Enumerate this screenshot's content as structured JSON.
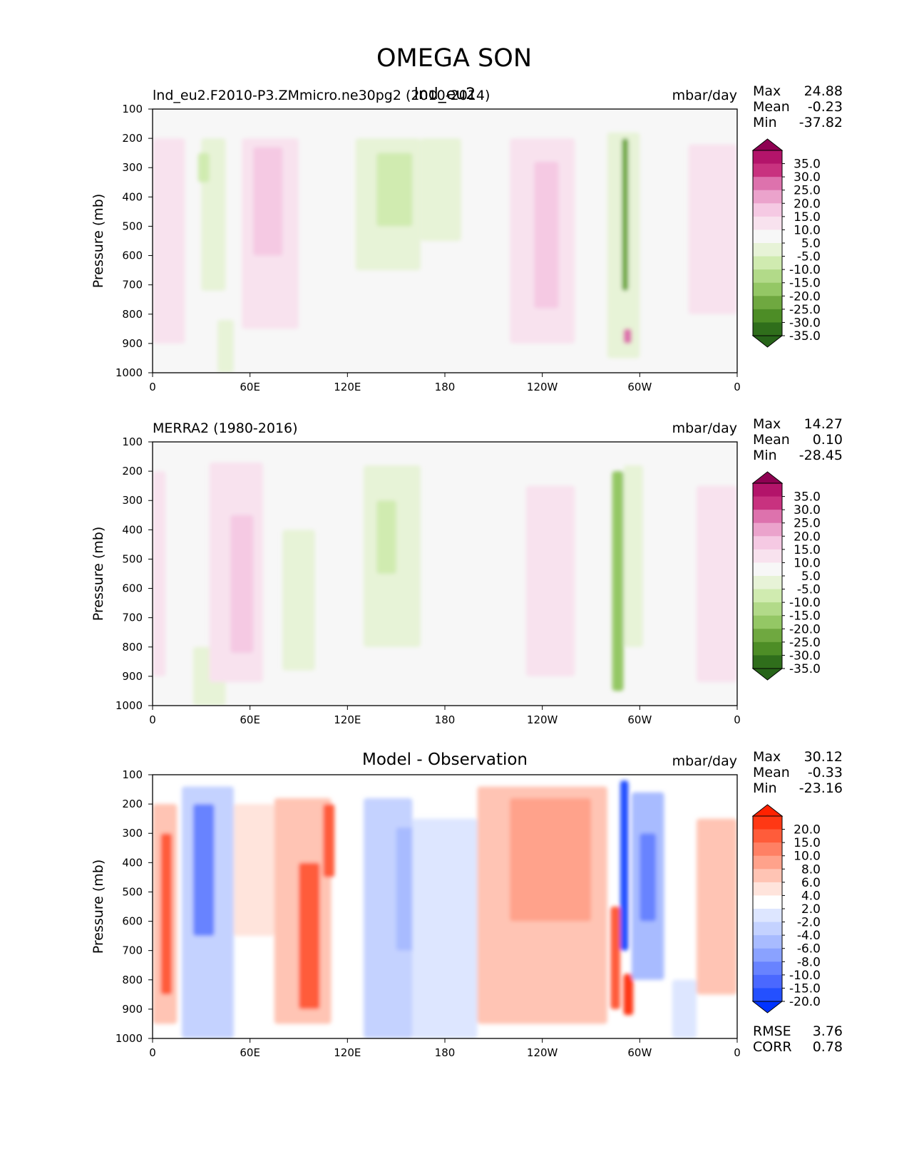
{
  "title": "OMEGA SON",
  "panels": [
    {
      "id": "test",
      "left_title": "lnd_eu2.F2010-P3.ZMmicro.ne30pg2 (2010-2014)",
      "center_title": "lnd_eu2",
      "units": "mbar/day",
      "stats": [
        {
          "label": "Max",
          "value": "24.88"
        },
        {
          "label": "Mean",
          "value": "-0.23"
        },
        {
          "label": "Min",
          "value": "-37.82"
        }
      ],
      "colormap": "green-pink"
    },
    {
      "id": "ref",
      "left_title": "MERRA2 (1980-2016)",
      "center_title": "",
      "units": "mbar/day",
      "stats": [
        {
          "label": "Max",
          "value": "14.27"
        },
        {
          "label": "Mean",
          "value": "0.10"
        },
        {
          "label": "Min",
          "value": "-28.45"
        }
      ],
      "colormap": "green-pink"
    },
    {
      "id": "diff",
      "left_title": "",
      "center_title": "Model - Observation",
      "units": "mbar/day",
      "stats": [
        {
          "label": "Max",
          "value": "30.12"
        },
        {
          "label": "Mean",
          "value": "-0.33"
        },
        {
          "label": "Min",
          "value": "-23.16"
        }
      ],
      "extra_stats": [
        {
          "label": "RMSE",
          "value": "3.76"
        },
        {
          "label": "CORR",
          "value": "0.78"
        }
      ],
      "colormap": "blue-red"
    }
  ],
  "axes": {
    "ylabel": "Pressure (mb)",
    "y_ticks": [
      "100",
      "200",
      "300",
      "400",
      "500",
      "600",
      "700",
      "800",
      "900",
      "1000"
    ],
    "x_ticks": [
      "0",
      "60E",
      "120E",
      "180",
      "120W",
      "60W",
      "0"
    ]
  },
  "colorbars": {
    "green-pink": {
      "labels": [
        "35.0",
        "30.0",
        "25.0",
        "20.0",
        "15.0",
        "10.0",
        "5.0",
        "-5.0",
        "-10.0",
        "-15.0",
        "-20.0",
        "-25.0",
        "-30.0",
        "-35.0"
      ],
      "colors": [
        "#8e0152",
        "#b3146a",
        "#c8327f",
        "#dd72ad",
        "#eba3cc",
        "#f5c9e3",
        "#f8e2ee",
        "#f7f7f7",
        "#e7f3d7",
        "#d0ebb0",
        "#b2da89",
        "#94c765",
        "#6fa840",
        "#4d8d26",
        "#2f6e1b",
        "#276419"
      ]
    },
    "blue-red": {
      "labels": [
        "20.0",
        "15.0",
        "10.0",
        "8.0",
        "6.0",
        "4.0",
        "2.0",
        "-2.0",
        "-4.0",
        "-6.0",
        "-8.0",
        "-10.0",
        "-15.0",
        "-20.0"
      ],
      "colors": [
        "#ff2200",
        "#ff3814",
        "#ff5c3a",
        "#ff8064",
        "#ffa28b",
        "#ffc4b4",
        "#ffe4dc",
        "#ffffff",
        "#dde6ff",
        "#c4d2ff",
        "#a8bbff",
        "#8aa2ff",
        "#6883ff",
        "#4a68ff",
        "#2450ff",
        "#0033ff"
      ]
    }
  },
  "chart_data": [
    {
      "type": "heatmap",
      "title": "lnd_eu2.F2010-P3.ZMmicro.ne30pg2 (2010-2014)",
      "xlabel": "",
      "ylabel": "Pressure (mb)",
      "x_range": [
        0,
        360
      ],
      "y_range": [
        1000,
        100
      ],
      "units": "mbar/day",
      "features": [
        {
          "lon": [
            0,
            20
          ],
          "p": [
            200,
            900
          ],
          "value": 8
        },
        {
          "lon": [
            30,
            45
          ],
          "p": [
            200,
            720
          ],
          "value": -8
        },
        {
          "lon": [
            28,
            35
          ],
          "p": [
            250,
            350
          ],
          "value": -12
        },
        {
          "lon": [
            40,
            50
          ],
          "p": [
            820,
            1000
          ],
          "value": -6
        },
        {
          "lon": [
            55,
            90
          ],
          "p": [
            200,
            850
          ],
          "value": 7
        },
        {
          "lon": [
            62,
            80
          ],
          "p": [
            230,
            600
          ],
          "value": 13
        },
        {
          "lon": [
            125,
            165
          ],
          "p": [
            200,
            650
          ],
          "value": -9
        },
        {
          "lon": [
            138,
            160
          ],
          "p": [
            250,
            500
          ],
          "value": -13
        },
        {
          "lon": [
            165,
            190
          ],
          "p": [
            200,
            550
          ],
          "value": -6
        },
        {
          "lon": [
            220,
            260
          ],
          "p": [
            200,
            900
          ],
          "value": 8
        },
        {
          "lon": [
            235,
            250
          ],
          "p": [
            280,
            780
          ],
          "value": 12
        },
        {
          "lon": [
            280,
            300
          ],
          "p": [
            180,
            950
          ],
          "value": -10
        },
        {
          "lon": [
            289,
            293
          ],
          "p": [
            200,
            720
          ],
          "value": -30
        },
        {
          "lon": [
            290,
            295
          ],
          "p": [
            850,
            900
          ],
          "value": 22
        },
        {
          "lon": [
            330,
            360
          ],
          "p": [
            220,
            800
          ],
          "value": 8
        }
      ]
    },
    {
      "type": "heatmap",
      "title": "MERRA2 (1980-2016)",
      "xlabel": "",
      "ylabel": "Pressure (mb)",
      "x_range": [
        0,
        360
      ],
      "y_range": [
        1000,
        100
      ],
      "units": "mbar/day",
      "features": [
        {
          "lon": [
            0,
            8
          ],
          "p": [
            200,
            900
          ],
          "value": 6
        },
        {
          "lon": [
            25,
            45
          ],
          "p": [
            800,
            1000
          ],
          "value": -8
        },
        {
          "lon": [
            35,
            68
          ],
          "p": [
            170,
            920
          ],
          "value": 7
        },
        {
          "lon": [
            48,
            62
          ],
          "p": [
            350,
            820
          ],
          "value": 13
        },
        {
          "lon": [
            80,
            100
          ],
          "p": [
            400,
            880
          ],
          "value": -7
        },
        {
          "lon": [
            130,
            165
          ],
          "p": [
            180,
            800
          ],
          "value": -7
        },
        {
          "lon": [
            138,
            150
          ],
          "p": [
            300,
            550
          ],
          "value": -11
        },
        {
          "lon": [
            230,
            260
          ],
          "p": [
            250,
            900
          ],
          "value": 6
        },
        {
          "lon": [
            283,
            290
          ],
          "p": [
            200,
            950
          ],
          "value": -25
        },
        {
          "lon": [
            290,
            302
          ],
          "p": [
            180,
            800
          ],
          "value": -9
        },
        {
          "lon": [
            335,
            360
          ],
          "p": [
            250,
            920
          ],
          "value": 6
        }
      ]
    },
    {
      "type": "heatmap",
      "title": "Model - Observation",
      "xlabel": "",
      "ylabel": "Pressure (mb)",
      "x_range": [
        0,
        360
      ],
      "y_range": [
        1000,
        100
      ],
      "units": "mbar/day",
      "rmse": 3.76,
      "corr": 0.78,
      "features": [
        {
          "lon": [
            0,
            15
          ],
          "p": [
            200,
            950
          ],
          "value": 5
        },
        {
          "lon": [
            5,
            12
          ],
          "p": [
            300,
            850
          ],
          "value": 10
        },
        {
          "lon": [
            18,
            50
          ],
          "p": [
            140,
            1000
          ],
          "value": -6
        },
        {
          "lon": [
            25,
            38
          ],
          "p": [
            200,
            650
          ],
          "value": -14
        },
        {
          "lon": [
            50,
            75
          ],
          "p": [
            200,
            650
          ],
          "value": 3
        },
        {
          "lon": [
            75,
            110
          ],
          "p": [
            180,
            950
          ],
          "value": 5
        },
        {
          "lon": [
            90,
            103
          ],
          "p": [
            400,
            900
          ],
          "value": 12
        },
        {
          "lon": [
            105,
            112
          ],
          "p": [
            200,
            450
          ],
          "value": 10
        },
        {
          "lon": [
            130,
            160
          ],
          "p": [
            180,
            1000
          ],
          "value": -5
        },
        {
          "lon": [
            150,
            163
          ],
          "p": [
            280,
            700
          ],
          "value": -8
        },
        {
          "lon": [
            160,
            200
          ],
          "p": [
            250,
            1000
          ],
          "value": -3
        },
        {
          "lon": [
            200,
            280
          ],
          "p": [
            140,
            950
          ],
          "value": 4
        },
        {
          "lon": [
            220,
            270
          ],
          "p": [
            180,
            600
          ],
          "value": 7
        },
        {
          "lon": [
            282,
            288
          ],
          "p": [
            550,
            900
          ],
          "value": 12
        },
        {
          "lon": [
            288,
            293
          ],
          "p": [
            120,
            700
          ],
          "value": -22
        },
        {
          "lon": [
            290,
            296
          ],
          "p": [
            780,
            920
          ],
          "value": 18
        },
        {
          "lon": [
            295,
            315
          ],
          "p": [
            160,
            800
          ],
          "value": -8
        },
        {
          "lon": [
            300,
            310
          ],
          "p": [
            300,
            600
          ],
          "value": -13
        },
        {
          "lon": [
            320,
            335
          ],
          "p": [
            800,
            1000
          ],
          "value": -4
        },
        {
          "lon": [
            335,
            360
          ],
          "p": [
            250,
            850
          ],
          "value": 4
        }
      ]
    }
  ]
}
